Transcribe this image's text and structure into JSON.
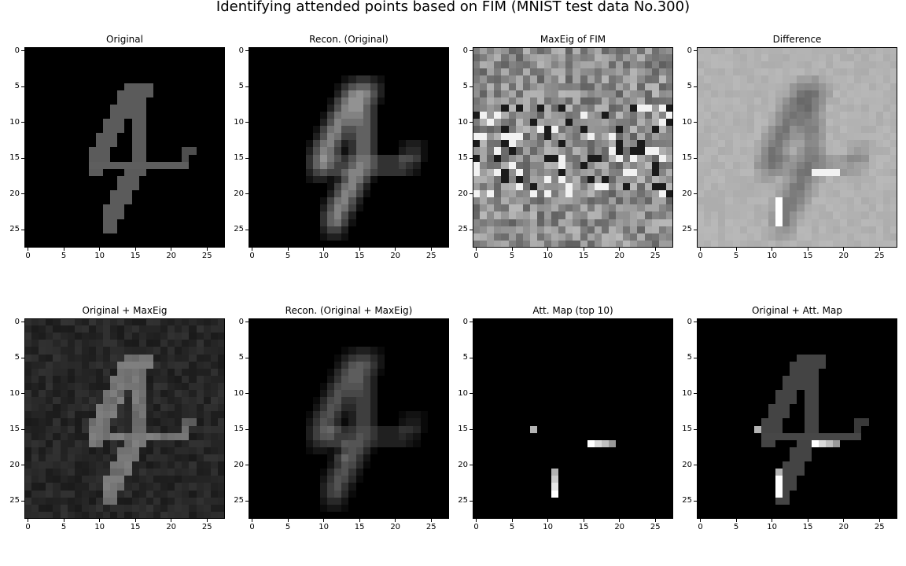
{
  "figure": {
    "suptitle": "Identifying attended points based on FIM (MNIST test data No.300)"
  },
  "chart_data": [
    {
      "type": "heatmap",
      "kind": "original",
      "title": "Original",
      "xlim": [
        -0.5,
        27.5
      ],
      "ylim": [
        27.5,
        -0.5
      ],
      "xticks": [
        0,
        5,
        10,
        15,
        20,
        25
      ],
      "yticks": [
        0,
        5,
        10,
        15,
        20,
        25
      ],
      "colormap": "gray"
    },
    {
      "type": "heatmap",
      "kind": "recon",
      "title": "Recon. (Original)",
      "xlim": [
        -0.5,
        27.5
      ],
      "ylim": [
        27.5,
        -0.5
      ],
      "xticks": [
        0,
        5,
        10,
        15,
        20,
        25
      ],
      "yticks": [
        0,
        5,
        10,
        15,
        20,
        25
      ],
      "colormap": "gray"
    },
    {
      "type": "heatmap",
      "kind": "maxeig",
      "title": "MaxEig of FIM",
      "xlim": [
        -0.5,
        27.5
      ],
      "ylim": [
        27.5,
        -0.5
      ],
      "xticks": [
        0,
        5,
        10,
        15,
        20,
        25
      ],
      "yticks": [
        0,
        5,
        10,
        15,
        20,
        25
      ],
      "colormap": "gray"
    },
    {
      "type": "heatmap",
      "kind": "difference",
      "title": "Difference",
      "xlim": [
        -0.5,
        27.5
      ],
      "ylim": [
        27.5,
        -0.5
      ],
      "xticks": [
        0,
        5,
        10,
        15,
        20,
        25
      ],
      "yticks": [
        0,
        5,
        10,
        15,
        20,
        25
      ],
      "colormap": "gray"
    },
    {
      "type": "heatmap",
      "kind": "orig_maxeig",
      "title": "Original + MaxEig",
      "xlim": [
        -0.5,
        27.5
      ],
      "ylim": [
        27.5,
        -0.5
      ],
      "xticks": [
        0,
        5,
        10,
        15,
        20,
        25
      ],
      "yticks": [
        0,
        5,
        10,
        15,
        20,
        25
      ],
      "colormap": "gray"
    },
    {
      "type": "heatmap",
      "kind": "recon_maxeig",
      "title": "Recon. (Original + MaxEig)",
      "xlim": [
        -0.5,
        27.5
      ],
      "ylim": [
        27.5,
        -0.5
      ],
      "xticks": [
        0,
        5,
        10,
        15,
        20,
        25
      ],
      "yticks": [
        0,
        5,
        10,
        15,
        20,
        25
      ],
      "colormap": "gray"
    },
    {
      "type": "heatmap",
      "kind": "attmap",
      "title": "Att. Map (top 10)",
      "xlim": [
        -0.5,
        27.5
      ],
      "ylim": [
        27.5,
        -0.5
      ],
      "xticks": [
        0,
        5,
        10,
        15,
        20,
        25
      ],
      "yticks": [
        0,
        5,
        10,
        15,
        20,
        25
      ],
      "colormap": "gray",
      "points": [
        [
          15,
          8,
          0.7
        ],
        [
          17,
          16,
          1.0
        ],
        [
          17,
          17,
          0.85
        ],
        [
          17,
          18,
          0.75
        ],
        [
          17,
          19,
          0.6
        ],
        [
          21,
          11,
          0.7
        ],
        [
          22,
          11,
          0.8
        ],
        [
          23,
          11,
          0.9
        ],
        [
          24,
          11,
          1.0
        ],
        [
          17,
          15,
          0.0
        ]
      ]
    },
    {
      "type": "heatmap",
      "kind": "orig_att",
      "title": "Original + Att. Map",
      "xlim": [
        -0.5,
        27.5
      ],
      "ylim": [
        27.5,
        -0.5
      ],
      "xticks": [
        0,
        5,
        10,
        15,
        20,
        25
      ],
      "yticks": [
        0,
        5,
        10,
        15,
        20,
        25
      ],
      "colormap": "gray"
    }
  ]
}
